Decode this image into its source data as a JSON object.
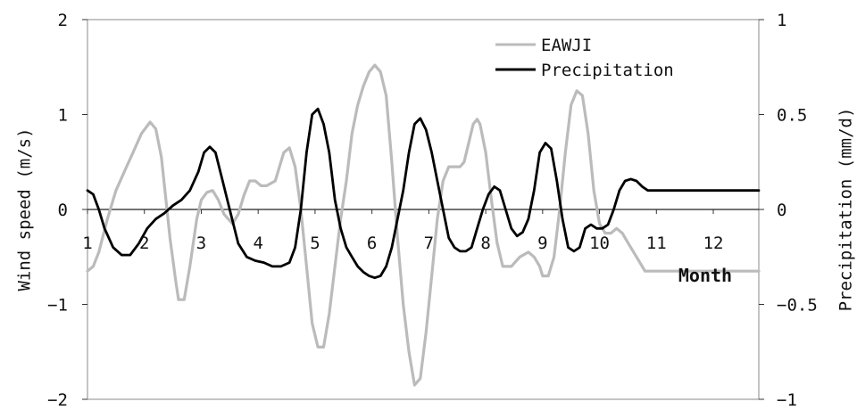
{
  "chart_data": {
    "type": "line",
    "title": "",
    "xlabel": "Month",
    "ylabel": "Wind speed (m/s)",
    "y2label": "Precipitation (mm/d)",
    "xlim": [
      1,
      12.8
    ],
    "ylim": [
      -2,
      2
    ],
    "y2lim": [
      -1,
      1
    ],
    "x_ticks": [
      "1",
      "2",
      "3",
      "4",
      "5",
      "6",
      "7",
      "8",
      "9",
      "10",
      "11",
      "12"
    ],
    "y_ticks": [
      "2",
      "1",
      "0",
      "−1",
      "−2"
    ],
    "y2_ticks": [
      "1",
      "0.5",
      "0",
      "−0.5",
      "−1"
    ],
    "grid": false,
    "legend_position": "top-right",
    "series": [
      {
        "name": "EAWJI",
        "axis": "left",
        "color": "#bbbbbb",
        "x": [
          1.0,
          1.1,
          1.2,
          1.35,
          1.5,
          1.65,
          1.8,
          1.95,
          2.1,
          2.2,
          2.3,
          2.38,
          2.45,
          2.55,
          2.6,
          2.7,
          2.8,
          2.92,
          3.0,
          3.1,
          3.2,
          3.3,
          3.4,
          3.55,
          3.65,
          3.75,
          3.85,
          3.95,
          4.05,
          4.15,
          4.3,
          4.45,
          4.55,
          4.65,
          4.75,
          4.85,
          4.95,
          5.05,
          5.15,
          5.25,
          5.35,
          5.45,
          5.55,
          5.65,
          5.75,
          5.85,
          5.95,
          6.05,
          6.15,
          6.25,
          6.35,
          6.45,
          6.55,
          6.65,
          6.75,
          6.85,
          6.95,
          7.05,
          7.15,
          7.25,
          7.35,
          7.45,
          7.55,
          7.62,
          7.7,
          7.78,
          7.85,
          7.9,
          8.0,
          8.1,
          8.2,
          8.3,
          8.45,
          8.6,
          8.75,
          8.85,
          8.95,
          9.0,
          9.1,
          9.2,
          9.3,
          9.4,
          9.5,
          9.6,
          9.7,
          9.8,
          9.9,
          10.0,
          10.1,
          10.2,
          10.3,
          10.4,
          10.5,
          10.6,
          10.7,
          10.8,
          10.9,
          11.0,
          11.1,
          11.2,
          11.3,
          11.4,
          11.5,
          11.6,
          11.7,
          11.8,
          11.9,
          12.0,
          12.1,
          12.2,
          12.3,
          12.4,
          12.5,
          12.6,
          12.7,
          12.8
        ],
        "values": [
          -0.65,
          -0.6,
          -0.45,
          -0.1,
          0.2,
          0.4,
          0.6,
          0.8,
          0.92,
          0.85,
          0.55,
          0.1,
          -0.3,
          -0.75,
          -0.95,
          -0.95,
          -0.6,
          -0.1,
          0.1,
          0.18,
          0.2,
          0.1,
          -0.05,
          -0.15,
          -0.05,
          0.15,
          0.3,
          0.3,
          0.25,
          0.25,
          0.3,
          0.6,
          0.65,
          0.45,
          0.0,
          -0.6,
          -1.2,
          -1.45,
          -1.45,
          -1.1,
          -0.6,
          -0.1,
          0.3,
          0.8,
          1.1,
          1.3,
          1.45,
          1.52,
          1.45,
          1.2,
          0.5,
          -0.3,
          -1.0,
          -1.5,
          -1.85,
          -1.78,
          -1.3,
          -0.7,
          -0.1,
          0.3,
          0.45,
          0.45,
          0.45,
          0.5,
          0.7,
          0.9,
          0.95,
          0.9,
          0.6,
          0.1,
          -0.35,
          -0.6,
          -0.6,
          -0.5,
          -0.45,
          -0.5,
          -0.6,
          -0.7,
          -0.7,
          -0.5,
          0.0,
          0.6,
          1.1,
          1.25,
          1.2,
          0.8,
          0.2,
          -0.15,
          -0.25,
          -0.25,
          -0.2,
          -0.25,
          -0.35,
          -0.45,
          -0.55,
          -0.65,
          -0.65,
          -0.65,
          -0.65,
          -0.65,
          -0.65,
          -0.65,
          -0.65,
          -0.65,
          -0.65,
          -0.65,
          -0.65,
          -0.65,
          -0.65,
          -0.65,
          -0.65,
          -0.65,
          -0.65,
          -0.65,
          -0.65,
          -0.65
        ]
      },
      {
        "name": "Precipitation",
        "axis": "right",
        "color": "#000000",
        "x": [
          1.0,
          1.1,
          1.2,
          1.3,
          1.45,
          1.6,
          1.75,
          1.9,
          2.05,
          2.2,
          2.35,
          2.5,
          2.65,
          2.8,
          2.95,
          3.05,
          3.15,
          3.25,
          3.35,
          3.5,
          3.65,
          3.8,
          3.95,
          4.1,
          4.25,
          4.4,
          4.55,
          4.65,
          4.75,
          4.85,
          4.95,
          5.05,
          5.15,
          5.25,
          5.35,
          5.45,
          5.55,
          5.65,
          5.75,
          5.85,
          5.95,
          6.05,
          6.15,
          6.25,
          6.35,
          6.45,
          6.55,
          6.65,
          6.75,
          6.85,
          6.95,
          7.05,
          7.15,
          7.25,
          7.35,
          7.45,
          7.55,
          7.65,
          7.75,
          7.85,
          7.95,
          8.05,
          8.15,
          8.25,
          8.35,
          8.45,
          8.55,
          8.65,
          8.75,
          8.85,
          8.95,
          9.05,
          9.15,
          9.25,
          9.35,
          9.45,
          9.55,
          9.65,
          9.75,
          9.85,
          9.95,
          10.05,
          10.15,
          10.25,
          10.35,
          10.45,
          10.55,
          10.65,
          10.75,
          10.85,
          10.95,
          11.05,
          11.15,
          11.25,
          11.35,
          11.45,
          11.55,
          11.65,
          11.75,
          11.85,
          11.95,
          12.05,
          12.15,
          12.25,
          12.4,
          12.55,
          12.7,
          12.8
        ],
        "values": [
          0.1,
          0.08,
          0.0,
          -0.1,
          -0.2,
          -0.24,
          -0.24,
          -0.18,
          -0.1,
          -0.05,
          -0.02,
          0.02,
          0.05,
          0.1,
          0.2,
          0.3,
          0.33,
          0.3,
          0.18,
          0.0,
          -0.18,
          -0.25,
          -0.27,
          -0.28,
          -0.3,
          -0.3,
          -0.28,
          -0.2,
          0.0,
          0.3,
          0.5,
          0.53,
          0.45,
          0.3,
          0.05,
          -0.1,
          -0.2,
          -0.25,
          -0.3,
          -0.33,
          -0.35,
          -0.36,
          -0.35,
          -0.3,
          -0.2,
          -0.05,
          0.1,
          0.3,
          0.45,
          0.48,
          0.42,
          0.3,
          0.15,
          0.0,
          -0.15,
          -0.2,
          -0.22,
          -0.22,
          -0.2,
          -0.1,
          0.0,
          0.08,
          0.12,
          0.1,
          0.0,
          -0.1,
          -0.14,
          -0.12,
          -0.05,
          0.1,
          0.3,
          0.35,
          0.32,
          0.15,
          -0.05,
          -0.2,
          -0.22,
          -0.2,
          -0.1,
          -0.08,
          -0.1,
          -0.1,
          -0.08,
          0.0,
          0.1,
          0.15,
          0.16,
          0.15,
          0.12,
          0.1,
          0.1,
          0.1,
          0.1,
          0.1,
          0.1,
          0.1,
          0.1,
          0.1,
          0.1,
          0.1,
          0.1,
          0.1,
          0.1,
          0.1,
          0.1,
          0.1,
          0.1,
          0.1
        ]
      }
    ]
  }
}
